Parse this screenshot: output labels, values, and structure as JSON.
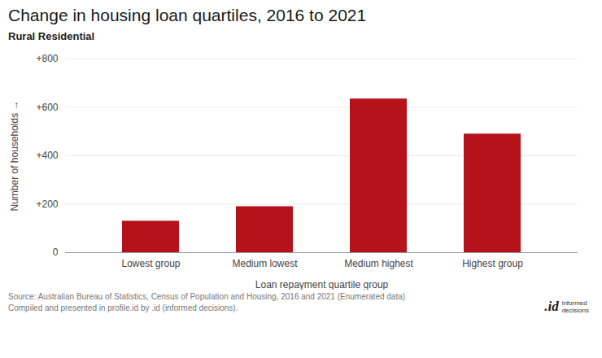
{
  "chart_data": {
    "type": "bar",
    "title": "Change in housing loan quartiles, 2016 to 2021",
    "subtitle": "Rural Residential",
    "categories": [
      "Lowest group",
      "Medium lowest",
      "Medium highest",
      "Highest group"
    ],
    "values": [
      130,
      190,
      635,
      490
    ],
    "color": "#b5121b",
    "ylabel": "Number of households",
    "xlabel": "Loan repayment quartile group",
    "ylim": [
      0,
      800
    ],
    "yticks": [
      0,
      {
        "value": 200,
        "label": "+200"
      },
      {
        "value": 400,
        "label": "+400"
      },
      {
        "value": 600,
        "label": "+600"
      },
      {
        "value": 800,
        "label": "+800"
      }
    ],
    "grid": true,
    "annotations": [
      "Source: Australian Bureau of Statistics, Census of Population and Housing, 2016 and 2021 (Enumerated data)\nCompiled and presented in profile.id by .id (informed decisions).",
      ".id",
      "informed\ndecisions"
    ]
  }
}
